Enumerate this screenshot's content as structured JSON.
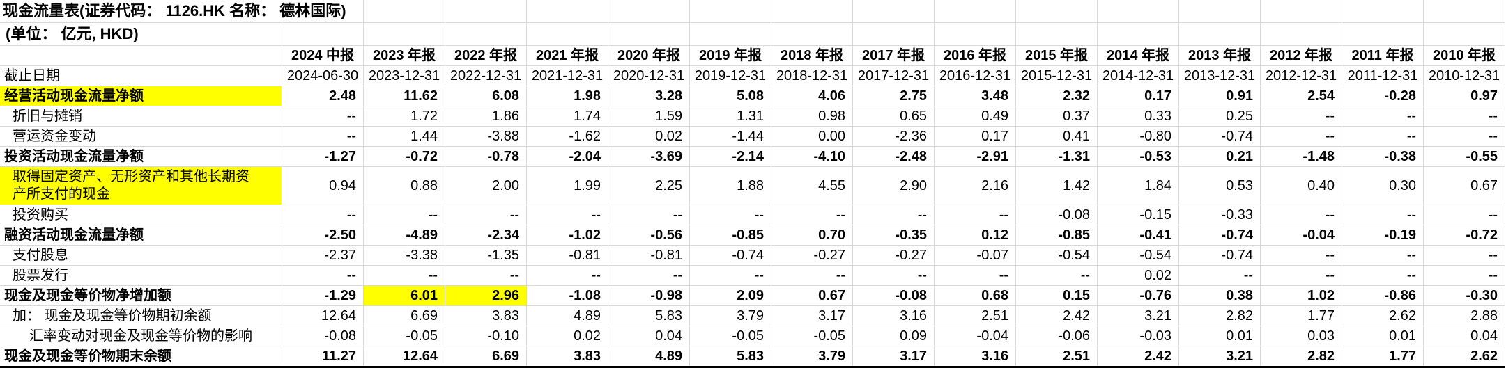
{
  "title": "现金流量表(证券代码： 1126.HK 名称： 德林国际)",
  "subtitle": "(单位： 亿元, HKD)",
  "colors": {
    "highlight": "#ffff00",
    "gridline": "#d8d8d8",
    "text": "#000000"
  },
  "table": {
    "header_cols": [
      "2024 中报",
      "2023 年报",
      "2022 年报",
      "2021 年报",
      "2020 年报",
      "2019 年报",
      "2018 年报",
      "2017 年报",
      "2016 年报",
      "2015 年报",
      "2014 年报",
      "2013 年报",
      "2012 年报",
      "2011 年报",
      "2010 年报"
    ],
    "date_row": {
      "label": "截止日期",
      "values": [
        "2024-06-30",
        "2023-12-31",
        "2022-12-31",
        "2021-12-31",
        "2020-12-31",
        "2019-12-31",
        "2018-12-31",
        "2017-12-31",
        "2016-12-31",
        "2015-12-31",
        "2014-12-31",
        "2013-12-31",
        "2012-12-31",
        "2011-12-31",
        "2010-12-31"
      ]
    },
    "rows": [
      {
        "label": "经营活动现金流量净额",
        "bold": true,
        "label_highlight": true,
        "indent": 0,
        "values": [
          "2.48",
          "11.62",
          "6.08",
          "1.98",
          "3.28",
          "5.08",
          "4.06",
          "2.75",
          "3.48",
          "2.32",
          "0.17",
          "0.91",
          "2.54",
          "-0.28",
          "0.97"
        ]
      },
      {
        "label": "折旧与摊销",
        "indent": 1,
        "values": [
          "--",
          "1.72",
          "1.86",
          "1.74",
          "1.59",
          "1.31",
          "0.98",
          "0.65",
          "0.49",
          "0.37",
          "0.33",
          "0.25",
          "--",
          "--",
          "--"
        ]
      },
      {
        "label": "营运资金变动",
        "indent": 1,
        "values": [
          "--",
          "1.44",
          "-3.88",
          "-1.62",
          "0.02",
          "-1.44",
          "0.00",
          "-2.36",
          "0.17",
          "0.41",
          "-0.80",
          "-0.74",
          "--",
          "--",
          "--"
        ]
      },
      {
        "label": "投资活动现金流量净额",
        "bold": true,
        "indent": 0,
        "values": [
          "-1.27",
          "-0.72",
          "-0.78",
          "-2.04",
          "-3.69",
          "-2.14",
          "-4.10",
          "-2.48",
          "-2.91",
          "-1.31",
          "-0.53",
          "0.21",
          "-1.48",
          "-0.38",
          "-0.55"
        ]
      },
      {
        "label": "取得固定资产、无形资产和其他长期资产所支付的现金",
        "indent": 1,
        "label_highlight": true,
        "wrap": true,
        "values": [
          "0.94",
          "0.88",
          "2.00",
          "1.99",
          "2.25",
          "1.88",
          "4.55",
          "2.90",
          "2.16",
          "1.42",
          "1.84",
          "0.53",
          "0.40",
          "0.30",
          "0.67"
        ]
      },
      {
        "label": "投资购买",
        "indent": 1,
        "values": [
          "--",
          "--",
          "--",
          "--",
          "--",
          "--",
          "--",
          "--",
          "--",
          "-0.08",
          "-0.15",
          "-0.33",
          "--",
          "--",
          "--"
        ]
      },
      {
        "label": "融资活动现金流量净额",
        "bold": true,
        "indent": 0,
        "values": [
          "-2.50",
          "-4.89",
          "-2.34",
          "-1.02",
          "-0.56",
          "-0.85",
          "0.70",
          "-0.35",
          "0.12",
          "-0.85",
          "-0.41",
          "-0.74",
          "-0.04",
          "-0.19",
          "-0.72"
        ]
      },
      {
        "label": "支付股息",
        "indent": 1,
        "values": [
          "-2.37",
          "-3.38",
          "-1.35",
          "-0.81",
          "-0.81",
          "-0.74",
          "-0.27",
          "-0.27",
          "-0.07",
          "-0.54",
          "-0.54",
          "-0.74",
          "--",
          "--",
          "--"
        ]
      },
      {
        "label": "股票发行",
        "indent": 1,
        "values": [
          "--",
          "--",
          "--",
          "--",
          "--",
          "--",
          "--",
          "--",
          "--",
          "--",
          "0.02",
          "--",
          "--",
          "--",
          "--"
        ]
      },
      {
        "label": "现金及现金等价物净增加额",
        "bold": true,
        "indent": 0,
        "value_highlights": [
          1,
          2
        ],
        "values": [
          "-1.29",
          "6.01",
          "2.96",
          "-1.08",
          "-0.98",
          "2.09",
          "0.67",
          "-0.08",
          "0.68",
          "0.15",
          "-0.76",
          "0.38",
          "1.02",
          "-0.86",
          "-0.30"
        ]
      },
      {
        "label": "加： 现金及现金等价物期初余额",
        "indent": 1,
        "values": [
          "12.64",
          "6.69",
          "3.83",
          "4.89",
          "5.83",
          "3.79",
          "3.17",
          "3.16",
          "2.51",
          "2.42",
          "3.21",
          "2.82",
          "1.77",
          "2.62",
          "2.88"
        ]
      },
      {
        "label": "汇率变动对现金及现金等价物的影响",
        "indent": 2,
        "values": [
          "-0.08",
          "-0.05",
          "-0.10",
          "0.02",
          "0.04",
          "-0.05",
          "-0.05",
          "0.09",
          "-0.04",
          "-0.06",
          "-0.03",
          "0.01",
          "0.03",
          "0.01",
          "0.04"
        ]
      },
      {
        "label": "现金及现金等价物期末余额",
        "bold": true,
        "indent": 0,
        "last": true,
        "values": [
          "11.27",
          "12.64",
          "6.69",
          "3.83",
          "4.89",
          "5.83",
          "3.79",
          "3.17",
          "3.16",
          "2.51",
          "2.42",
          "3.21",
          "2.82",
          "1.77",
          "2.62"
        ]
      }
    ]
  }
}
